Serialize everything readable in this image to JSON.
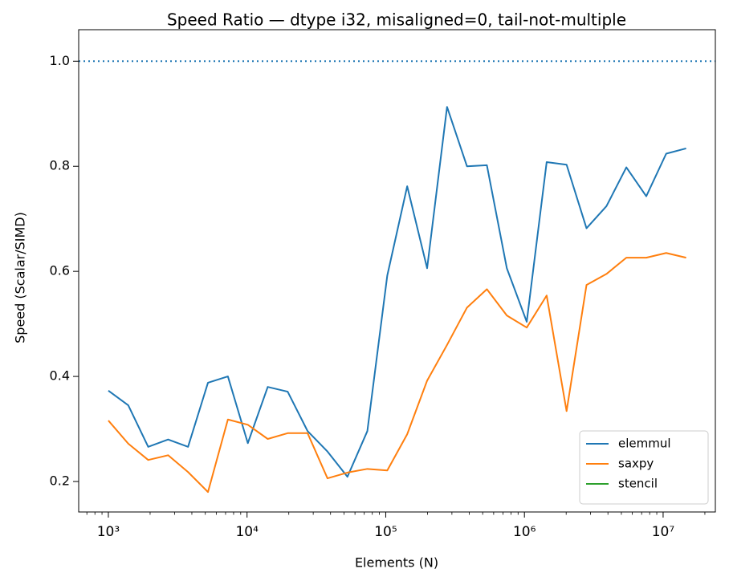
{
  "chart_data": {
    "type": "line",
    "title": "Speed Ratio — dtype i32, misaligned=0, tail-not-multiple",
    "xlabel": "Elements (N)",
    "ylabel": "Speed (Scalar/SIMD)",
    "x": [
      1000,
      1392,
      1938,
      2697,
      3755,
      5227,
      7276,
      10129,
      14100,
      19627,
      27321,
      38032,
      52942,
      73696,
      102587,
      142806,
      198791,
      276724,
      385209,
      536221,
      746434,
      1039058,
      1446405,
      2013435,
      2802753,
      3901512,
      5430998,
      7560101,
      10523882,
      14649560
    ],
    "series": [
      {
        "name": "elemmul",
        "color": "#1f77b4",
        "values": [
          0.373,
          0.345,
          0.266,
          0.28,
          0.266,
          0.388,
          0.4,
          0.273,
          0.38,
          0.371,
          0.296,
          0.257,
          0.209,
          0.296,
          0.592,
          0.762,
          0.606,
          0.913,
          0.8,
          0.802,
          0.606,
          0.504,
          0.808,
          0.803,
          0.682,
          0.724,
          0.798,
          0.743,
          0.824,
          0.834
        ]
      },
      {
        "name": "saxpy",
        "color": "#ff7f0e",
        "values": [
          0.316,
          0.272,
          0.241,
          0.25,
          0.218,
          0.18,
          0.318,
          0.308,
          0.281,
          0.292,
          0.292,
          0.206,
          0.217,
          0.224,
          0.221,
          0.29,
          0.392,
          0.46,
          0.531,
          0.566,
          0.516,
          0.493,
          0.554,
          0.334,
          0.574,
          0.595,
          0.626,
          0.626,
          0.635,
          0.626
        ]
      },
      {
        "name": "stencil",
        "color": "#2ca02c",
        "values": [
          null,
          null,
          null,
          null,
          null,
          null,
          null,
          null,
          null,
          null,
          null,
          null,
          null,
          null,
          null,
          null,
          null,
          null,
          null,
          null,
          null,
          null,
          null,
          null,
          null,
          null,
          null,
          null,
          null,
          null
        ]
      }
    ],
    "xscale": "log",
    "xlim": [
      611,
      23800000
    ],
    "xticks": [
      {
        "value": 1000,
        "label": "10³"
      },
      {
        "value": 10000,
        "label": "10⁴"
      },
      {
        "value": 100000,
        "label": "10⁵"
      },
      {
        "value": 1000000,
        "label": "10⁶"
      },
      {
        "value": 10000000,
        "label": "10⁷"
      }
    ],
    "minor_ticks": true,
    "ylim": [
      0.142,
      1.06
    ],
    "yticks": [
      0.2,
      0.4,
      0.6,
      0.8,
      {
        "value": 1.0,
        "label": "1.0"
      }
    ],
    "reference_line": {
      "value": 1.0,
      "color": "#1f77b4",
      "style": "dotted"
    },
    "legend": "lower right"
  }
}
